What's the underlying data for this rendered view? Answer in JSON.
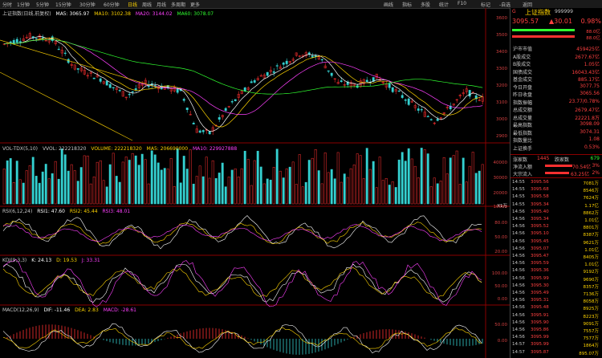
{
  "toolbar": {
    "periods": [
      "分时",
      "1分钟",
      "5分钟",
      "15分钟",
      "30分钟",
      "60分钟",
      "日线",
      "周线",
      "月线",
      "多周期",
      "更多"
    ],
    "active_period": "日线",
    "right_tools": [
      "画线",
      "指标",
      "多股",
      "统计",
      "F10",
      "标记",
      "-自选",
      "返回"
    ]
  },
  "main": {
    "title": "上证指数(日线,前复权)",
    "ma5": "MA5: 3065.97",
    "ma10": "MA10: 3102.38",
    "ma20": "MA20: 3144.02",
    "ma60": "MA60: 3078.07",
    "high_label": "3578.73",
    "low_label": "2863.65",
    "y_ticks": [
      "3600",
      "3500",
      "3400",
      "3300",
      "3200",
      "3100",
      "3000",
      "2900"
    ]
  },
  "volume": {
    "title": "VOL-TDX(5,10)",
    "vvol": "VVOL: 222218320",
    "volume": "VOLUME: 222218320",
    "ma5": "MA5: 206690000",
    "ma10": "MA10: 229927888",
    "y_ticks": [
      "40000",
      "30000",
      "20000",
      "10000"
    ],
    "unit": "X1万"
  },
  "rsi": {
    "title": "RSI(6,12,24)",
    "rsi1": "RSI1: 47.60",
    "rsi2": "RSI2: 45.44",
    "rsi3": "RSI3: 48.01",
    "y_ticks": [
      "80.00",
      "50.00",
      "20.00"
    ]
  },
  "kdj": {
    "title": "KDJ(9,3,3)",
    "k": "K: 24.13",
    "d": "D: 19.53",
    "j": "J: 33.31",
    "y_ticks": [
      "100.00",
      "50.00",
      "0.00"
    ]
  },
  "macd": {
    "title": "MACD(12,26,9)",
    "dif": "DIF: -11.46",
    "dea": "DEA: 2.83",
    "macd": "MACD: -28.61",
    "y_ticks": [
      "50.00",
      "0.00"
    ]
  },
  "quote": {
    "code_prefix": "G",
    "name": "上证指数",
    "code": "999999",
    "price": "3095.57",
    "change": "▲30.01",
    "change_pct": "0.98%",
    "bar_values": [
      "88.0亿",
      "88.0亿"
    ],
    "rows": [
      {
        "label": "沪市市值",
        "value": "459425亿"
      },
      {
        "label": "A股成交",
        "value": "2677.67亿"
      },
      {
        "label": "B股成交",
        "value": "1.05亿"
      },
      {
        "label": "国债成交",
        "value": "16043.43亿"
      },
      {
        "label": "基金成交",
        "value": "885.17亿"
      },
      {
        "label": "今日开盘",
        "value": "3077.75"
      },
      {
        "label": "昨日收盘",
        "value": "3065.56"
      },
      {
        "label": "指数振幅",
        "value": "23.77/0.78%"
      },
      {
        "label": "总成交额",
        "value": "2679.47亿"
      },
      {
        "label": "总成交量",
        "value": "22221.8万"
      },
      {
        "label": "最高指数",
        "value": "3098.09"
      },
      {
        "label": "最低指数",
        "value": "3074.31"
      },
      {
        "label": "指数量比",
        "value": "1.08"
      },
      {
        "label": "上证换手",
        "value": "0.53%"
      }
    ],
    "up_label": "涨家数",
    "up_count": "1445",
    "down_label": "跌家数",
    "down_count": "679",
    "net_in_label": "净流入额",
    "net_in_value": "70.54亿",
    "net_in_pct": "3%",
    "big_in_label": "大宗流入",
    "big_in_value": "63.25亿",
    "big_in_pct": "2%",
    "ticks": [
      {
        "t": "14:55",
        "p": "3095.56",
        "v": "7081万"
      },
      {
        "t": "14:55",
        "p": "3095.68",
        "v": "8546万"
      },
      {
        "t": "14:55",
        "p": "3095.58",
        "v": "7624万"
      },
      {
        "t": "14:55",
        "p": "3095.34",
        "v": "1.17亿"
      },
      {
        "t": "14:56",
        "p": "3095.40",
        "v": "8862万"
      },
      {
        "t": "14:56",
        "p": "3095.34",
        "v": "1.01亿"
      },
      {
        "t": "14:56",
        "p": "3095.52",
        "v": "8801万"
      },
      {
        "t": "14:56",
        "p": "3095.10",
        "v": "8387万"
      },
      {
        "t": "14:56",
        "p": "3095.45",
        "v": "9621万"
      },
      {
        "t": "14:56",
        "p": "3095.07",
        "v": "1.01亿"
      },
      {
        "t": "14:56",
        "p": "3095.47",
        "v": "8405万"
      },
      {
        "t": "14:56",
        "p": "3095.59",
        "v": "1.01亿"
      },
      {
        "t": "14:56",
        "p": "3095.36",
        "v": "9192万"
      },
      {
        "t": "14:56",
        "p": "3095.99",
        "v": "9690万"
      },
      {
        "t": "14:56",
        "p": "3095.30",
        "v": "8357万"
      },
      {
        "t": "14:56",
        "p": "3095.49",
        "v": "7136万"
      },
      {
        "t": "14:56",
        "p": "3095.31",
        "v": "8058万"
      },
      {
        "t": "14:56",
        "p": "3095.48",
        "v": "8925万"
      },
      {
        "t": "14:56",
        "p": "3095.91",
        "v": "8223万"
      },
      {
        "t": "14:56",
        "p": "3095.90",
        "v": "9091万"
      },
      {
        "t": "14:56",
        "p": "3095.86",
        "v": "7557万"
      },
      {
        "t": "14:56",
        "p": "3095.99",
        "v": "7577万"
      },
      {
        "t": "14:57",
        "p": "3095.99",
        "v": "1864万"
      },
      {
        "t": "14:57",
        "p": "3095.87",
        "v": "895.07万"
      }
    ]
  },
  "colors": {
    "up": "#ff3030",
    "down": "#35d0d0",
    "ma5": "#ffffff",
    "ma10": "#ffd400",
    "ma20": "#ff40ff",
    "ma60": "#30ff30",
    "grid": "#8a0000"
  }
}
